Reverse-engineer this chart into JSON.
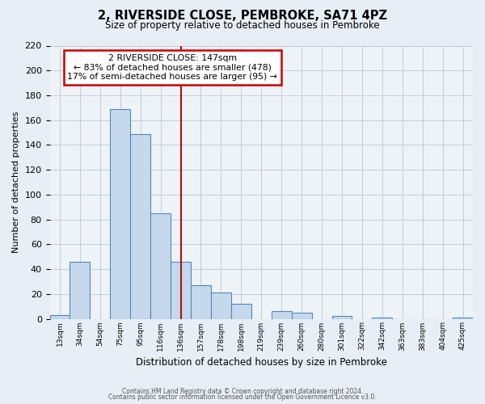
{
  "title": "2, RIVERSIDE CLOSE, PEMBROKE, SA71 4PZ",
  "subtitle": "Size of property relative to detached houses in Pembroke",
  "xlabel": "Distribution of detached houses by size in Pembroke",
  "ylabel": "Number of detached properties",
  "bar_labels": [
    "13sqm",
    "34sqm",
    "54sqm",
    "75sqm",
    "95sqm",
    "116sqm",
    "136sqm",
    "157sqm",
    "178sqm",
    "198sqm",
    "219sqm",
    "239sqm",
    "260sqm",
    "280sqm",
    "301sqm",
    "322sqm",
    "342sqm",
    "363sqm",
    "383sqm",
    "404sqm",
    "425sqm"
  ],
  "bar_heights": [
    3,
    46,
    0,
    169,
    149,
    85,
    46,
    27,
    21,
    12,
    0,
    6,
    5,
    0,
    2,
    0,
    1,
    0,
    0,
    0,
    1
  ],
  "bar_color": "#c5d8ec",
  "bar_edge_color": "#5588bb",
  "ref_line_color": "#aa1111",
  "annotation_title": "2 RIVERSIDE CLOSE: 147sqm",
  "annotation_line1": "← 83% of detached houses are smaller (478)",
  "annotation_line2": "17% of semi-detached houses are larger (95) →",
  "annotation_box_color": "#ffffff",
  "annotation_box_edge": "#cc0000",
  "ylim": [
    0,
    220
  ],
  "yticks": [
    0,
    20,
    40,
    60,
    80,
    100,
    120,
    140,
    160,
    180,
    200,
    220
  ],
  "footer1": "Contains HM Land Registry data © Crown copyright and database right 2024.",
  "footer2": "Contains public sector information licensed under the Open Government Licence v3.0.",
  "bg_color": "#e8eef5",
  "plot_bg_color": "#eef3f8",
  "grid_color": "#c0cdd8"
}
